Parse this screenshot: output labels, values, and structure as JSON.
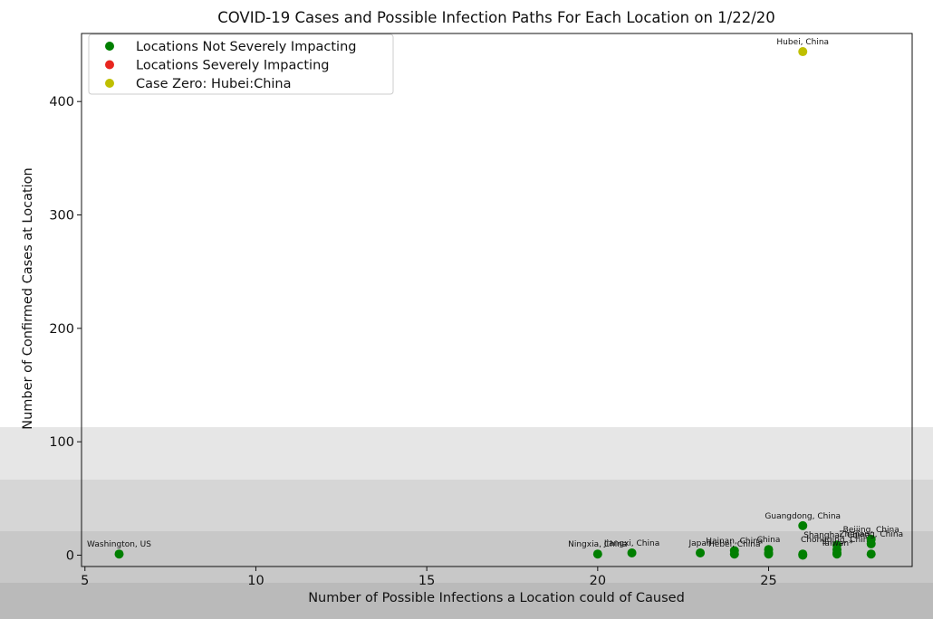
{
  "chart_data": {
    "type": "scatter",
    "title": "COVID-19 Cases and Possible Infection Paths For Each Location on 1/22/20",
    "xlabel": "Number of Possible Infections a Location could of Caused",
    "ylabel": "Number of Confirmed Cases at Location",
    "xlim": [
      4.9,
      29.2
    ],
    "ylim": [
      -10,
      460
    ],
    "xticks": [
      5,
      10,
      15,
      20,
      25
    ],
    "yticks": [
      0,
      100,
      200,
      300,
      400
    ],
    "grid": false,
    "legend_position": "top-left",
    "series": [
      {
        "name": "Locations Not Severely Impacting",
        "color": "#007f00",
        "points": [
          {
            "x": 6,
            "y": 1,
            "label": "Washington, US"
          },
          {
            "x": 20,
            "y": 1,
            "label": "Ningxia, China"
          },
          {
            "x": 21,
            "y": 2,
            "label": "Jiangxi, China"
          },
          {
            "x": 23,
            "y": 2,
            "label": "Japan"
          },
          {
            "x": 24,
            "y": 4,
            "label": "Hainan, China"
          },
          {
            "x": 24,
            "y": 1,
            "label": "Hebei, China"
          },
          {
            "x": 25,
            "y": 5,
            "label": "China"
          },
          {
            "x": 25,
            "y": 2,
            "label": ""
          },
          {
            "x": 25,
            "y": 1,
            "label": ""
          },
          {
            "x": 26,
            "y": 26,
            "label": "Guangdong, China"
          },
          {
            "x": 26,
            "y": 1,
            "label": ""
          },
          {
            "x": 26,
            "y": 0,
            "label": ""
          },
          {
            "x": 27,
            "y": 9,
            "label": "Shanghai, China"
          },
          {
            "x": 27,
            "y": 5,
            "label": "Chongqing, China"
          },
          {
            "x": 27,
            "y": 2,
            "label": "Taiwan*"
          },
          {
            "x": 27,
            "y": 1,
            "label": ""
          },
          {
            "x": 28,
            "y": 14,
            "label": "Beijing, China"
          },
          {
            "x": 28,
            "y": 10,
            "label": "Zhejiang, China"
          },
          {
            "x": 28,
            "y": 1,
            "label": ""
          }
        ]
      },
      {
        "name": "Locations Severely Impacting",
        "color": "#e8261f",
        "points": []
      },
      {
        "name": "Case Zero: Hubei:China",
        "color": "#bfbf00",
        "points": [
          {
            "x": 26,
            "y": 444,
            "label": "Hubei, China"
          }
        ]
      }
    ]
  }
}
